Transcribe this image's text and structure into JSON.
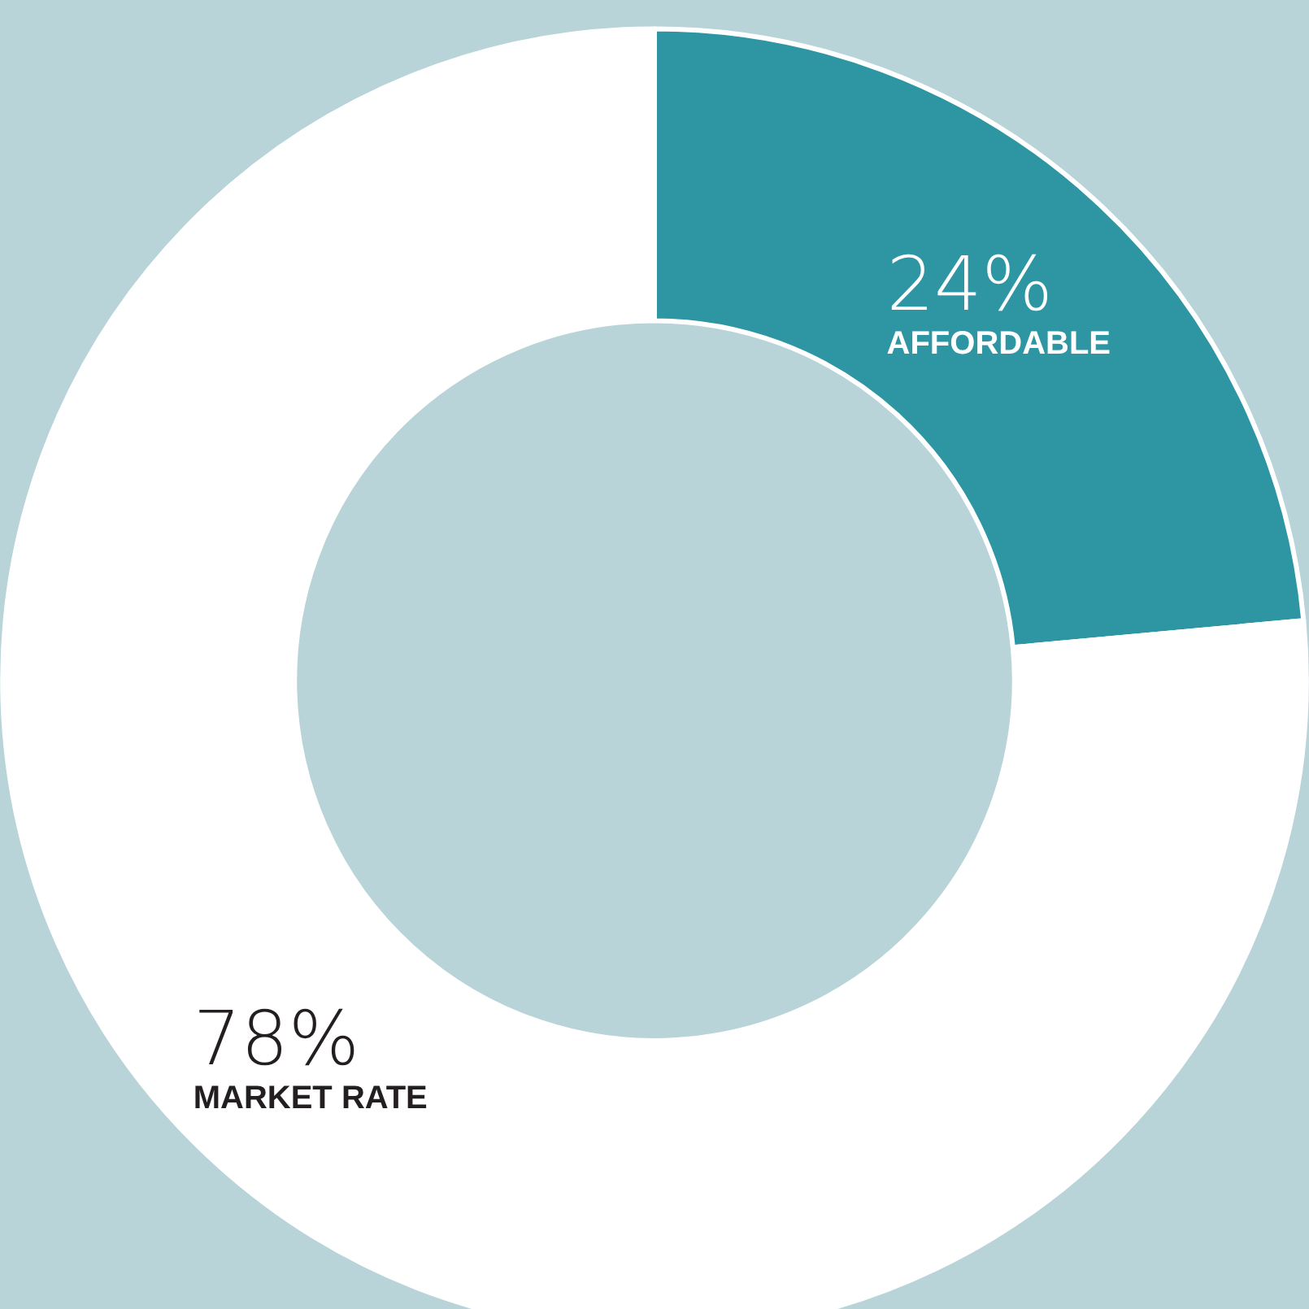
{
  "chart_data": {
    "type": "donut",
    "categories": [
      "AFFORDABLE",
      "MARKET RATE"
    ],
    "values": [
      24,
      78
    ],
    "value_labels": [
      "24%",
      "78%"
    ],
    "colors": [
      "#2e95a3",
      "#ffffff"
    ],
    "legend": false
  }
}
